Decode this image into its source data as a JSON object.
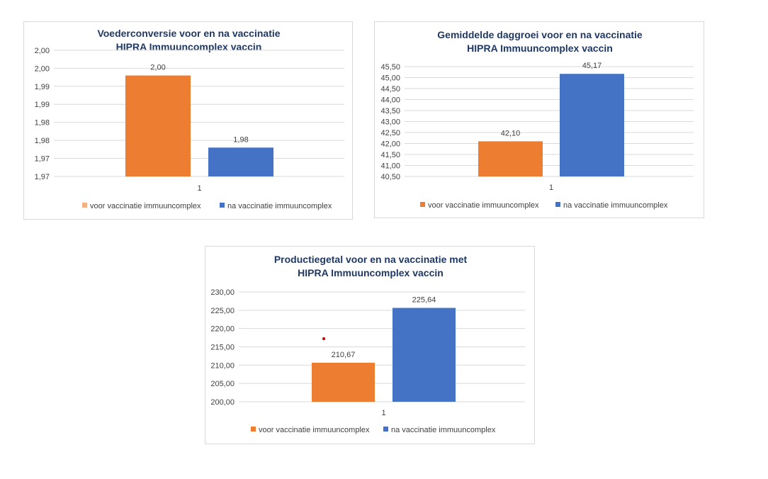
{
  "colors": {
    "orange": "#ED7D31",
    "orange_light": "#F4B183",
    "blue": "#4472C4",
    "title": "#1F3864"
  },
  "chart_data": [
    {
      "type": "bar",
      "title": [
        "Voederconversie voor en na vaccinatie",
        "HIPRA Immuuncomplex vaccin"
      ],
      "categories": [
        "1"
      ],
      "series": [
        {
          "name": "voor vaccinatie immuuncomplex",
          "values": [
            1.998
          ],
          "label": "2,00"
        },
        {
          "name": "na vaccinatie immuuncomplex",
          "values": [
            1.978
          ],
          "label": "1,98"
        }
      ],
      "ylim": [
        1.97,
        2.004
      ],
      "yticks": [
        1.97,
        1.975,
        1.98,
        1.985,
        1.99,
        1.995,
        2.0,
        2.005
      ],
      "ytick_labels": [
        "1,97",
        "1,97",
        "1,98",
        "1,98",
        "1,99",
        "1,99",
        "2,00",
        "2,00"
      ],
      "grid": true,
      "legend": "bottom"
    },
    {
      "type": "bar",
      "title": [
        "Gemiddelde daggroei voor en na vaccinatie",
        "HIPRA Immuuncomplex vaccin"
      ],
      "categories": [
        "1"
      ],
      "series": [
        {
          "name": "voor vaccinatie immuuncomplex",
          "values": [
            42.1
          ],
          "label": "42,10"
        },
        {
          "name": "na vaccinatie immuuncomplex",
          "values": [
            45.17
          ],
          "label": "45,17"
        }
      ],
      "ylim": [
        40.5,
        45.5
      ],
      "yticks": [
        40.5,
        41.0,
        41.5,
        42.0,
        42.5,
        43.0,
        43.5,
        44.0,
        44.5,
        45.0,
        45.5
      ],
      "ytick_labels": [
        "40,50",
        "41,00",
        "41,50",
        "42,00",
        "42,50",
        "43,00",
        "43,50",
        "44,00",
        "44,50",
        "45,00",
        "45,50"
      ],
      "grid": true,
      "legend": "bottom"
    },
    {
      "type": "bar",
      "title": [
        "Productiegetal voor en na vaccinatie met",
        "HIPRA Immuuncomplex vaccin"
      ],
      "categories": [
        "1"
      ],
      "series": [
        {
          "name": "voor vaccinatie immuuncomplex",
          "values": [
            210.67
          ],
          "label": "210,67"
        },
        {
          "name": "na vaccinatie immuuncomplex",
          "values": [
            225.64
          ],
          "label": "225,64"
        }
      ],
      "ylim": [
        200,
        230
      ],
      "yticks": [
        200,
        205,
        210,
        215,
        220,
        225,
        230
      ],
      "ytick_labels": [
        "200,00",
        "205,00",
        "210,00",
        "215,00",
        "220,00",
        "225,00",
        "230,00"
      ],
      "grid": true,
      "legend": "bottom"
    }
  ]
}
